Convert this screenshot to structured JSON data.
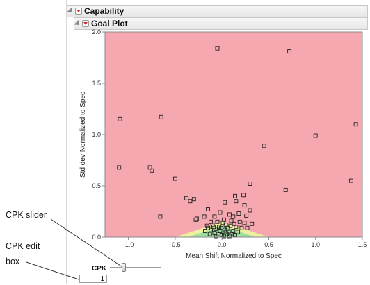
{
  "outline": {
    "capability_title": "Capability",
    "goal_plot_title": "Goal Plot"
  },
  "callouts": {
    "cpk_slider": "CPK slider",
    "cpk_edit_line1": "CPK edit",
    "cpk_edit_line2": "box"
  },
  "cpk": {
    "label": "CPK",
    "value": "1",
    "slider_value": 1
  },
  "colors": {
    "red_region": "#f6a8b0",
    "yellow_region": "#ecf0a0",
    "green_region": "#9fde9e",
    "marker": "#222222"
  },
  "chart_data": {
    "type": "scatter",
    "xlabel": "Mean Shift Normalized to Spec",
    "ylabel": "Std dev Normalized to Spec",
    "xlim": [
      -1.25,
      1.5
    ],
    "ylim": [
      0,
      2.0
    ],
    "xticks": [
      "-1.0",
      "-0.5",
      "0.0",
      "0.5",
      "1.0",
      "1.5"
    ],
    "xtick_values": [
      -1.0,
      -0.5,
      0.0,
      0.5,
      1.0,
      1.5
    ],
    "yticks": [
      "0.0",
      "0.5",
      "1.0",
      "1.5",
      "2.0"
    ],
    "ytick_values": [
      0.0,
      0.5,
      1.0,
      1.5,
      2.0
    ],
    "points": [
      [
        -0.05,
        1.84
      ],
      [
        0.72,
        1.81
      ],
      [
        -1.09,
        1.15
      ],
      [
        -0.65,
        1.17
      ],
      [
        1.0,
        0.99
      ],
      [
        1.43,
        1.1
      ],
      [
        0.45,
        0.89
      ],
      [
        -1.1,
        0.68
      ],
      [
        -0.77,
        0.68
      ],
      [
        -0.75,
        0.65
      ],
      [
        -0.5,
        0.57
      ],
      [
        1.38,
        0.55
      ],
      [
        0.68,
        0.46
      ],
      [
        0.3,
        0.52
      ],
      [
        -0.38,
        0.38
      ],
      [
        -0.34,
        0.35
      ],
      [
        -0.3,
        0.37
      ],
      [
        -0.66,
        0.2
      ],
      [
        0.14,
        0.4
      ],
      [
        0.23,
        0.41
      ],
      [
        0.15,
        0.35
      ],
      [
        0.03,
        0.34
      ],
      [
        0.24,
        0.31
      ],
      [
        0.3,
        0.26
      ],
      [
        -0.15,
        0.27
      ],
      [
        -0.02,
        0.24
      ],
      [
        0.08,
        0.22
      ],
      [
        -0.27,
        0.18
      ],
      [
        -0.28,
        0.17
      ],
      [
        -0.19,
        0.2
      ],
      [
        -0.08,
        0.2
      ],
      [
        0.12,
        0.2
      ],
      [
        0.18,
        0.23
      ],
      [
        0.26,
        0.21
      ],
      [
        -0.12,
        0.15
      ],
      [
        -0.05,
        0.15
      ],
      [
        0.02,
        0.17
      ],
      [
        0.1,
        0.16
      ],
      [
        0.19,
        0.15
      ],
      [
        0.24,
        0.14
      ],
      [
        0.32,
        0.13
      ],
      [
        -0.16,
        0.11
      ],
      [
        -0.1,
        0.12
      ],
      [
        -0.03,
        0.1
      ],
      [
        0.04,
        0.12
      ],
      [
        0.09,
        0.11
      ],
      [
        0.15,
        0.1
      ],
      [
        0.21,
        0.09
      ],
      [
        0.27,
        0.09
      ],
      [
        -0.18,
        0.06
      ],
      [
        -0.12,
        0.07
      ],
      [
        -0.07,
        0.08
      ],
      [
        -0.02,
        0.06
      ],
      [
        0.03,
        0.07
      ],
      [
        0.07,
        0.05
      ],
      [
        0.12,
        0.06
      ],
      [
        0.17,
        0.05
      ],
      [
        -0.13,
        0.03
      ],
      [
        -0.08,
        0.04
      ],
      [
        -0.04,
        0.03
      ],
      [
        0.0,
        0.02
      ],
      [
        0.05,
        0.03
      ],
      [
        0.1,
        0.03
      ],
      [
        -0.06,
        0.01
      ],
      [
        0.02,
        0.01
      ],
      [
        0.08,
        0.01
      ],
      [
        0.14,
        0.02
      ],
      [
        -0.01,
        0.09
      ],
      [
        0.06,
        0.09
      ],
      [
        -0.09,
        0.1
      ],
      [
        0.01,
        0.14
      ],
      [
        -0.15,
        0.09
      ],
      [
        0.13,
        0.13
      ],
      [
        0.04,
        0.05
      ]
    ],
    "regions": {
      "red": "outside",
      "yellow": [
        [
          -0.5,
          0.0
        ],
        [
          0.0,
          0.15
        ],
        [
          0.5,
          0.0
        ]
      ],
      "green": [
        [
          -0.36,
          0.0
        ],
        [
          0.0,
          0.11
        ],
        [
          0.36,
          0.0
        ]
      ]
    }
  }
}
